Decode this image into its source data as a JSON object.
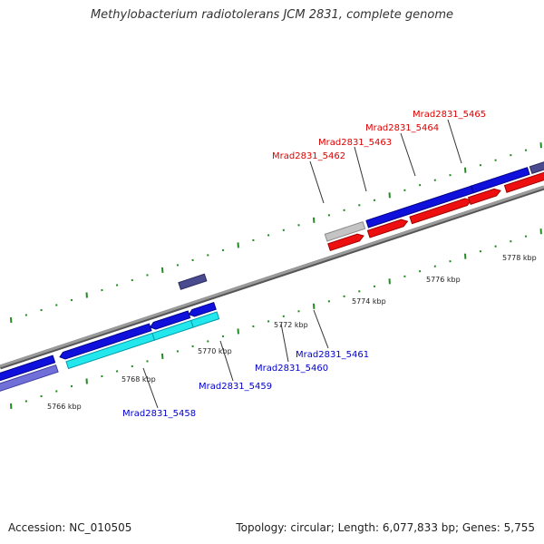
{
  "title": "Methylobacterium radiotolerans JCM 2831, complete genome",
  "footer": {
    "accession": "Accession: NC_010505",
    "summary": "Topology: circular; Length: 6,077,833 bp; Genes: 5,755"
  },
  "colors": {
    "forward_cds": "#1010dd",
    "reverse_cds": "#ee1010",
    "highlight_cds": "#22e8ee",
    "pale_cds": "#7070d8",
    "dark_cds": "#4a4a8e",
    "gray_cds": "#c4c4c4",
    "backbone": "#8a8a8a",
    "ticks": "#228b22",
    "label_top": "#dd0000",
    "label_bottom": "#0000cc"
  },
  "ruler_labels": [
    "5766 kbp",
    "5768 kbp",
    "5770 kbp",
    "5772 kbp",
    "5774 kbp",
    "5776 kbp",
    "5778 kbp"
  ],
  "top_labels": [
    "Mrad2831_5462",
    "Mrad2831_5463",
    "Mrad2831_5464",
    "Mrad2831_5465"
  ],
  "bottom_labels": [
    "Mrad2831_5458",
    "Mrad2831_5459",
    "Mrad2831_5460",
    "Mrad2831_5461"
  ]
}
